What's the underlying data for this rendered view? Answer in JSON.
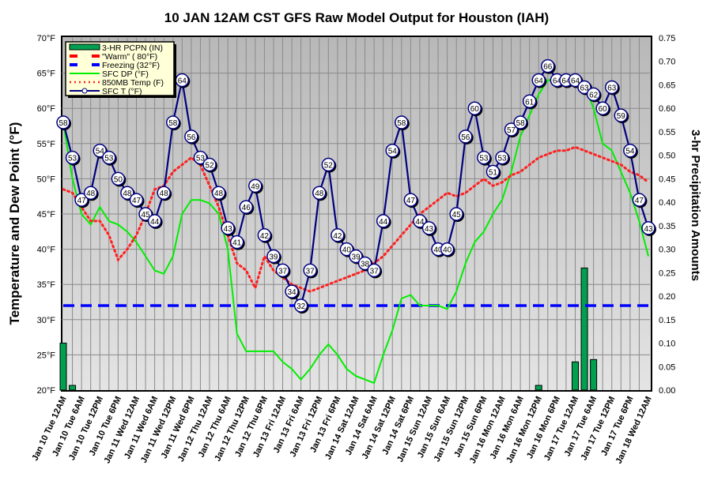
{
  "chart_data": {
    "type": "line",
    "title": "10 JAN 12AM CST GFS Raw Model Output for Houston (IAH)",
    "ylabel": "Temperature and Dew Point (°F)",
    "y2label": "3-hr Precipitation Amounts",
    "ylim": [
      20,
      70
    ],
    "y2lim": [
      0,
      0.75
    ],
    "y_ticks": [
      "20°F",
      "25°F",
      "30°F",
      "35°F",
      "40°F",
      "45°F",
      "50°F",
      "55°F",
      "60°F",
      "65°F",
      "70°F"
    ],
    "y2_ticks": [
      "0.00",
      "0.05",
      "0.10",
      "0.15",
      "0.20",
      "0.25",
      "0.30",
      "0.35",
      "0.40",
      "0.45",
      "0.50",
      "0.55",
      "0.60",
      "0.65",
      "0.70",
      "0.75"
    ],
    "x_step_hours": 3,
    "x_tick_labels": [
      "Jan 10 Tue 12AM",
      "Jan 10 Tue 6AM",
      "Jan 10 Tue 12PM",
      "Jan 10 Tue 6PM",
      "Jan 11 Wed 12AM",
      "Jan 11 Wed 6AM",
      "Jan 11 Wed 12PM",
      "Jan 11 Wed 6PM",
      "Jan 12 Thu 12AM",
      "Jan 12 Thu 6AM",
      "Jan 12 Thu 12PM",
      "Jan 12 Thu 6PM",
      "Jan 13 Fri 12AM",
      "Jan 13 Fri 6AM",
      "Jan 13 Fri 12PM",
      "Jan 13 Fri 6PM",
      "Jan 14 Sat 12AM",
      "Jan 14 Sat 6AM",
      "Jan 14 Sat 12PM",
      "Jan 14 Sat 6PM",
      "Jan 15 Sun 12AM",
      "Jan 15 Sun 6AM",
      "Jan 15 Sun 12PM",
      "Jan 15 Sun 6PM",
      "Jan 16 Mon 12AM",
      "Jan 16 Mon 6AM",
      "Jan 16 Mon 12PM",
      "Jan 16 Mon 6PM",
      "Jan 17 Tue 12AM",
      "Jan 17 Tue 6AM",
      "Jan 17 Tue 12PM",
      "Jan 17 Tue 6PM",
      "Jan 18 Wed 12AM"
    ],
    "legend_position": "top-left",
    "legend": [
      "3-HR PCPN (IN)",
      "\"Warm\" ( 80°F)",
      "Freezing (32°F)",
      "SFC DP (°F)",
      "850MB Temp (F)",
      "SFC T (°F)"
    ],
    "series": [
      {
        "name": "SFC T (°F)",
        "color": "#000080",
        "values": [
          58,
          53,
          47,
          48,
          54,
          53,
          50,
          48,
          47,
          45,
          44,
          48,
          58,
          64,
          56,
          53,
          52,
          48,
          43,
          41,
          46,
          49,
          42,
          39,
          37,
          34,
          32,
          37,
          48,
          52,
          42,
          40,
          39,
          38,
          37,
          44,
          54,
          58,
          47,
          44,
          43,
          40,
          40,
          45,
          56,
          60,
          53,
          51,
          53,
          57,
          58,
          61,
          64,
          66,
          64,
          64,
          64,
          63,
          62,
          60,
          63,
          59,
          54,
          47,
          43
        ]
      },
      {
        "name": "SFC DP (°F)",
        "color": "#00ee00",
        "values": [
          58,
          50,
          45,
          43.5,
          46,
          44,
          43.5,
          42.5,
          41,
          39,
          37,
          36.5,
          39,
          45,
          47,
          47,
          46.5,
          45,
          40,
          28,
          25.5,
          25.5,
          25.5,
          25.5,
          24,
          23,
          21.5,
          23,
          25,
          26.5,
          25,
          23,
          22,
          21.5,
          21,
          25,
          28.5,
          33,
          33.5,
          32,
          32,
          32,
          31.5,
          34,
          38,
          41,
          42.5,
          45,
          47,
          51,
          56,
          59,
          62,
          64,
          64,
          64,
          64,
          63.5,
          60,
          55,
          54,
          51,
          48,
          44,
          39
        ]
      },
      {
        "name": "850MB Temp (F)",
        "color": "#ff2020",
        "values": [
          48.5,
          48,
          46,
          44,
          44,
          42,
          38.5,
          40,
          42,
          45,
          48.5,
          49,
          51,
          52,
          53,
          52,
          49,
          46,
          42,
          38,
          37,
          34.5,
          39,
          37,
          36,
          35,
          34.5,
          34,
          34.5,
          35,
          35.5,
          36,
          36.5,
          37,
          38,
          39,
          40.5,
          42,
          43.5,
          45,
          46,
          47,
          48,
          47.5,
          48,
          49,
          50,
          49,
          49.5,
          50.5,
          51,
          52,
          53,
          53.5,
          54,
          54,
          54.5,
          54,
          53.5,
          53,
          52.5,
          52,
          51,
          50.5,
          49.5
        ]
      },
      {
        "name": "Freezing (32°F)",
        "color": "#0000ff",
        "value": 32
      },
      {
        "name": "\"Warm\" ( 80°F)",
        "color": "#ff0000",
        "value": 80
      }
    ],
    "precip": {
      "name": "3-HR PCPN (IN)",
      "color": "#00a050",
      "values": {
        "0": 0.1,
        "1": 0.01,
        "52": 0.01,
        "56": 0.06,
        "57": 0.26,
        "58": 0.065
      }
    }
  }
}
